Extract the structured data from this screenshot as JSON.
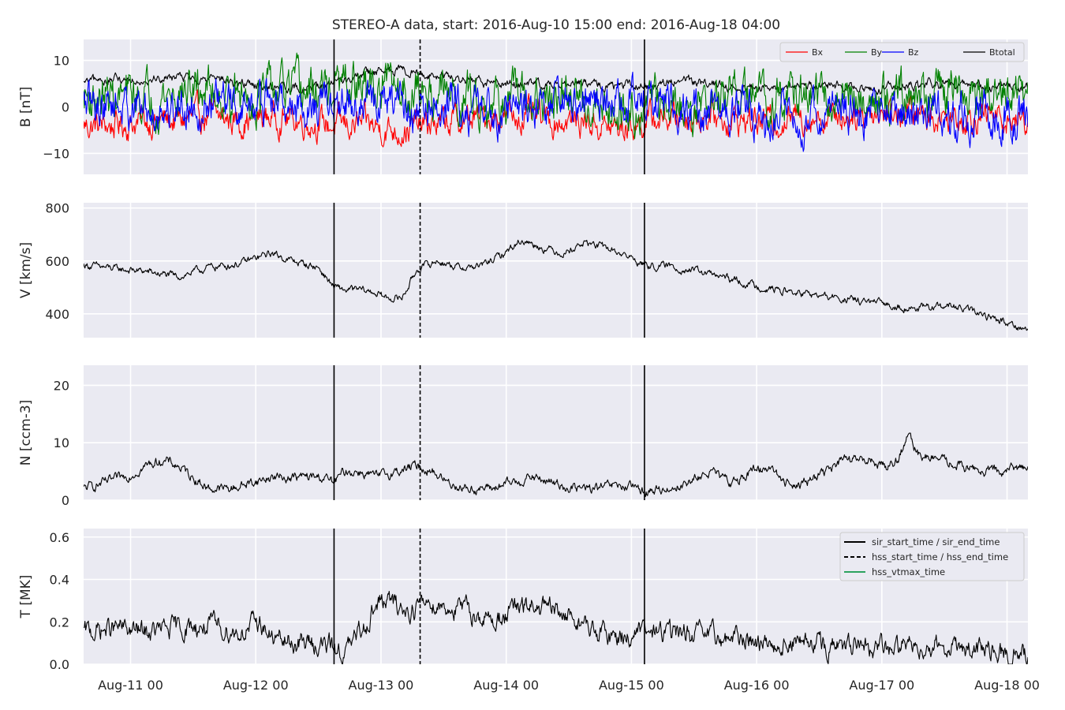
{
  "figure": {
    "title": "STEREO-A data, start: 2016-Aug-10 15:00  end: 2016-Aug-18 04:00"
  },
  "x_axis": {
    "range_hours": [
      0,
      181
    ],
    "ticks": [
      {
        "hour": 9,
        "label": "Aug-11 00"
      },
      {
        "hour": 33,
        "label": "Aug-12 00"
      },
      {
        "hour": 57,
        "label": "Aug-13 00"
      },
      {
        "hour": 81,
        "label": "Aug-14 00"
      },
      {
        "hour": 105,
        "label": "Aug-15 00"
      },
      {
        "hour": 129,
        "label": "Aug-16 00"
      },
      {
        "hour": 153,
        "label": "Aug-17 00"
      },
      {
        "hour": 177,
        "label": "Aug-18 00"
      }
    ]
  },
  "event_lines": [
    {
      "time": "2016-Aug-12 15:00",
      "hour": 48,
      "style": "solid",
      "label": "sir_start_time"
    },
    {
      "time": "2016-Aug-13 07:30",
      "hour": 64.5,
      "style": "dashed",
      "label": "hss_start_time"
    },
    {
      "time": "2016-Aug-15 02:30",
      "hour": 107.5,
      "style": "solid",
      "label": "sir_end_time"
    }
  ],
  "colors": {
    "Bx": "#ff0000",
    "By": "#008000",
    "Bz": "#0000ff",
    "Btotal": "#000000",
    "vtmax": "#2ca25f",
    "panel_bg": "#eaeaf2",
    "grid": "#ffffff"
  },
  "legend_B": [
    "Bx",
    "By",
    "Bz",
    "Btotal"
  ],
  "legend_events": [
    {
      "label": "sir_start_time / sir_end_time",
      "style": "solid",
      "color": "#000000"
    },
    {
      "label": "hss_start_time / hss_end_time",
      "style": "dashed",
      "color": "#000000"
    },
    {
      "label": "hss_vtmax_time",
      "style": "solid",
      "color": "#2ca25f"
    }
  ],
  "chart_data": [
    {
      "type": "line",
      "ylabel": "B [nT]",
      "ylim": [
        -14.5,
        14.5
      ],
      "yticks": [
        {
          "v": 10,
          "label": "10"
        },
        {
          "v": 0,
          "label": "0"
        },
        {
          "v": -10,
          "label": "−10"
        }
      ],
      "grid": true,
      "legend_position": "top-right",
      "x_hours": [
        0,
        6,
        12,
        18,
        24,
        30,
        36,
        42,
        48,
        54,
        60,
        66,
        72,
        78,
        84,
        90,
        96,
        102,
        108,
        114,
        120,
        126,
        132,
        138,
        144,
        150,
        156,
        162,
        168,
        174,
        181
      ],
      "series": [
        {
          "name": "Bx",
          "noise": 2.2,
          "values": [
            -4,
            -4,
            -3,
            -3,
            -2,
            -3,
            -2,
            -3,
            -4,
            -4,
            -5,
            -4,
            -3,
            -2,
            -2,
            -3,
            -3,
            -5,
            -3,
            -2,
            -2,
            -3,
            -3,
            -2,
            -2,
            -1,
            -1,
            -2,
            -2,
            -2,
            -3
          ]
        },
        {
          "name": "By",
          "noise": 3.5,
          "values": [
            2,
            2,
            2,
            3,
            4,
            2,
            3,
            3,
            4,
            4,
            4,
            3,
            2,
            2,
            1,
            1,
            2,
            0,
            1,
            0,
            1,
            2,
            2,
            2,
            2,
            2,
            3,
            3,
            2,
            2,
            2
          ]
        },
        {
          "name": "Bz",
          "noise": 3.2,
          "values": [
            0,
            1,
            -1,
            0,
            1,
            0,
            1,
            0,
            0,
            1,
            0,
            -1,
            0,
            -1,
            0,
            1,
            0,
            1,
            1,
            0,
            -1,
            -1,
            -2,
            -2,
            -1,
            -1,
            -1,
            -2,
            -3,
            -2,
            -1
          ]
        },
        {
          "name": "Btotal",
          "noise": 0.7,
          "values": [
            5,
            6,
            6,
            6.5,
            6,
            5,
            4.5,
            4,
            5,
            7,
            8,
            7,
            6,
            5,
            5,
            5,
            5,
            4.5,
            4.5,
            6,
            5,
            4,
            4,
            4.5,
            4.5,
            4,
            4,
            5,
            5,
            4.5,
            4
          ]
        }
      ]
    },
    {
      "type": "line",
      "ylabel": "V [km/s]",
      "ylim": [
        310,
        820
      ],
      "yticks": [
        {
          "v": 800,
          "label": "800"
        },
        {
          "v": 600,
          "label": "600"
        },
        {
          "v": 400,
          "label": "400"
        }
      ],
      "grid": true,
      "x_hours": [
        0,
        6,
        12,
        18,
        24,
        30,
        36,
        40,
        45,
        48,
        50,
        53,
        56,
        58,
        61,
        64,
        68,
        72,
        76,
        80,
        84,
        88,
        92,
        96,
        100,
        104,
        108,
        112,
        118,
        124,
        130,
        136,
        142,
        148,
        154,
        160,
        166,
        172,
        178,
        181
      ],
      "series": [
        {
          "name": "V",
          "noise": 10,
          "values": [
            585,
            570,
            560,
            540,
            575,
            590,
            630,
            600,
            575,
            500,
            490,
            490,
            480,
            460,
            460,
            570,
            600,
            575,
            580,
            620,
            680,
            650,
            630,
            670,
            650,
            620,
            580,
            580,
            560,
            530,
            500,
            480,
            465,
            450,
            435,
            420,
            430,
            400,
            360,
            340
          ]
        }
      ]
    },
    {
      "type": "line",
      "ylabel": "N [ccm-3]",
      "ylim": [
        0,
        23.5
      ],
      "yticks": [
        {
          "v": 20,
          "label": "20"
        },
        {
          "v": 10,
          "label": "10"
        },
        {
          "v": 0,
          "label": "0"
        }
      ],
      "grid": true,
      "x_hours": [
        0,
        4,
        8,
        12,
        15,
        18,
        21,
        24,
        28,
        32,
        36,
        40,
        42,
        46,
        48,
        50,
        53,
        56,
        60,
        64,
        67,
        70,
        74,
        78,
        82,
        86,
        90,
        94,
        98,
        102,
        106,
        108,
        112,
        116,
        120,
        124,
        128,
        132,
        134,
        138,
        142,
        146,
        150,
        154,
        156,
        158,
        160,
        164,
        168,
        172,
        176,
        181
      ],
      "series": [
        {
          "name": "N",
          "noise": 0.6,
          "values": [
            2,
            3,
            4,
            6,
            7,
            6,
            4,
            2,
            2,
            3,
            4,
            4,
            4,
            4,
            3,
            5,
            5,
            4,
            5,
            6,
            5,
            3,
            2,
            2,
            3,
            4,
            3,
            2,
            2,
            2.5,
            2,
            1.5,
            2,
            3,
            5,
            3,
            5,
            6,
            3,
            3,
            5,
            7,
            7,
            6,
            7,
            11,
            8,
            7,
            6,
            5,
            5,
            6
          ]
        }
      ]
    },
    {
      "type": "line",
      "ylabel": "T [MK]",
      "ylim": [
        0,
        0.64
      ],
      "yticks": [
        {
          "v": 0.6,
          "label": "0.6"
        },
        {
          "v": 0.4,
          "label": "0.4"
        },
        {
          "v": 0.2,
          "label": "0.2"
        },
        {
          "v": 0.0,
          "label": "0.0"
        }
      ],
      "grid": true,
      "legend_position": "top-right",
      "x_hours": [
        0,
        6,
        12,
        18,
        24,
        30,
        34,
        36,
        40,
        44,
        48,
        50,
        53,
        56,
        58,
        62,
        66,
        70,
        74,
        78,
        82,
        86,
        90,
        94,
        98,
        102,
        108,
        114,
        120,
        126,
        132,
        138,
        144,
        150,
        156,
        162,
        168,
        174,
        181
      ],
      "series": [
        {
          "name": "T",
          "noise": 0.035,
          "values": [
            0.15,
            0.17,
            0.15,
            0.17,
            0.18,
            0.15,
            0.2,
            0.12,
            0.1,
            0.1,
            0.08,
            0.05,
            0.15,
            0.28,
            0.3,
            0.25,
            0.3,
            0.27,
            0.25,
            0.2,
            0.25,
            0.27,
            0.25,
            0.22,
            0.15,
            0.13,
            0.15,
            0.15,
            0.13,
            0.12,
            0.1,
            0.1,
            0.08,
            0.07,
            0.08,
            0.1,
            0.08,
            0.05,
            0.05
          ]
        }
      ]
    }
  ]
}
